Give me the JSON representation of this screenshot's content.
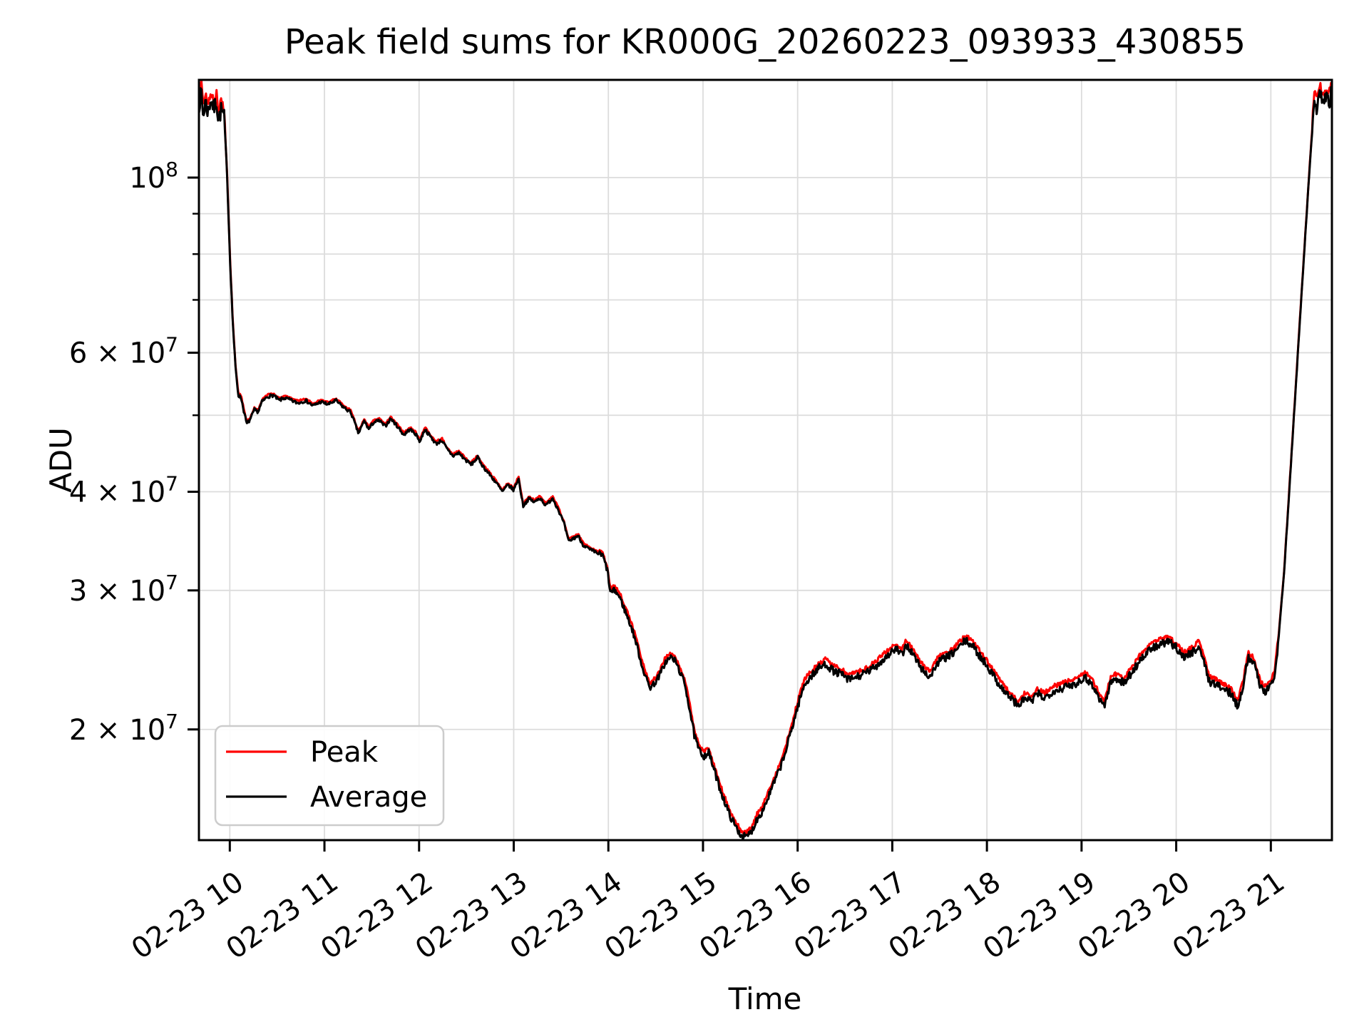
{
  "title": "Peak field sums for KR000G_20260223_093933_430855",
  "xlabel": "Time",
  "ylabel": "ADU",
  "legend": {
    "items": [
      {
        "label": "Peak",
        "color": "#ff0000"
      },
      {
        "label": "Average",
        "color": "#000000"
      }
    ]
  },
  "colors": {
    "grid": "#dcdcdc",
    "spine": "#000000",
    "background": "#ffffff"
  },
  "chart_data": {
    "type": "line",
    "title": "Peak field sums for KR000G_20260223_093933_430855",
    "xlabel": "Time",
    "ylabel": "ADU",
    "x_axis": {
      "kind": "time",
      "tick_hours": [
        10,
        11,
        12,
        13,
        14,
        15,
        16,
        17,
        18,
        19,
        20,
        21
      ],
      "ticklabels": [
        "02-23 10",
        "02-23 11",
        "02-23 12",
        "02-23 13",
        "02-23 14",
        "02-23 15",
        "02-23 16",
        "02-23 17",
        "02-23 18",
        "02-23 19",
        "02-23 20",
        "02-23 21"
      ],
      "data_start_hour": 9.676,
      "data_end_hour": 21.645
    },
    "y_axis": {
      "scale": "log",
      "unit": "ADU",
      "ylim_1e7": [
        1.448,
        13.3
      ],
      "major_ticks": [
        {
          "value_1e7": 10,
          "text": "10",
          "exp": "8"
        },
        {
          "value_1e7": 6,
          "text": "6 × 10",
          "exp": "7"
        },
        {
          "value_1e7": 4,
          "text": "4 × 10",
          "exp": "7"
        },
        {
          "value_1e7": 3,
          "text": "3 × 10",
          "exp": "7"
        },
        {
          "value_1e7": 2,
          "text": "2 × 10",
          "exp": "7"
        }
      ],
      "minor_gridline_values_1e7": [
        9,
        8,
        7,
        5
      ]
    },
    "grid": true,
    "legend_position": "lower left",
    "series": [
      {
        "name": "Average",
        "color": "#000000",
        "units": "ADU (values given in multiples of 1e7)",
        "keypoints_t_hours_v_1e7": [
          [
            9.676,
            12.4
          ],
          [
            9.7,
            12.8
          ],
          [
            9.72,
            11.9
          ],
          [
            9.74,
            12.5
          ],
          [
            9.77,
            12.1
          ],
          [
            9.8,
            12.6
          ],
          [
            9.83,
            12.2
          ],
          [
            9.86,
            12.5
          ],
          [
            9.88,
            11.8
          ],
          [
            9.91,
            12.2
          ],
          [
            9.94,
            11.9
          ],
          [
            9.97,
            10.2
          ],
          [
            10.0,
            8.0
          ],
          [
            10.03,
            6.6
          ],
          [
            10.06,
            5.75
          ],
          [
            10.09,
            5.3
          ],
          [
            10.12,
            5.26
          ],
          [
            10.15,
            5.05
          ],
          [
            10.18,
            4.87
          ],
          [
            10.22,
            4.95
          ],
          [
            10.26,
            5.08
          ],
          [
            10.3,
            5.05
          ],
          [
            10.34,
            5.2
          ],
          [
            10.4,
            5.28
          ],
          [
            10.46,
            5.3
          ],
          [
            10.52,
            5.22
          ],
          [
            10.58,
            5.26
          ],
          [
            10.65,
            5.22
          ],
          [
            10.72,
            5.18
          ],
          [
            10.8,
            5.22
          ],
          [
            10.88,
            5.14
          ],
          [
            10.96,
            5.2
          ],
          [
            11.04,
            5.16
          ],
          [
            11.12,
            5.22
          ],
          [
            11.2,
            5.12
          ],
          [
            11.28,
            5.04
          ],
          [
            11.36,
            4.74
          ],
          [
            11.42,
            4.92
          ],
          [
            11.47,
            4.8
          ],
          [
            11.52,
            4.9
          ],
          [
            11.58,
            4.92
          ],
          [
            11.64,
            4.84
          ],
          [
            11.7,
            4.95
          ],
          [
            11.76,
            4.86
          ],
          [
            11.84,
            4.72
          ],
          [
            11.9,
            4.8
          ],
          [
            11.96,
            4.74
          ],
          [
            12.01,
            4.63
          ],
          [
            12.06,
            4.8
          ],
          [
            12.12,
            4.7
          ],
          [
            12.18,
            4.6
          ],
          [
            12.24,
            4.65
          ],
          [
            12.3,
            4.52
          ],
          [
            12.36,
            4.44
          ],
          [
            12.42,
            4.48
          ],
          [
            12.48,
            4.4
          ],
          [
            12.55,
            4.33
          ],
          [
            12.62,
            4.42
          ],
          [
            12.68,
            4.3
          ],
          [
            12.75,
            4.2
          ],
          [
            12.82,
            4.1
          ],
          [
            12.88,
            4.0
          ],
          [
            12.94,
            4.08
          ],
          [
            13.0,
            4.02
          ],
          [
            13.05,
            4.16
          ],
          [
            13.1,
            3.84
          ],
          [
            13.16,
            3.92
          ],
          [
            13.22,
            3.88
          ],
          [
            13.28,
            3.93
          ],
          [
            13.34,
            3.84
          ],
          [
            13.41,
            3.93
          ],
          [
            13.47,
            3.8
          ],
          [
            13.53,
            3.65
          ],
          [
            13.58,
            3.46
          ],
          [
            13.63,
            3.49
          ],
          [
            13.68,
            3.52
          ],
          [
            13.73,
            3.43
          ],
          [
            13.8,
            3.38
          ],
          [
            13.87,
            3.35
          ],
          [
            13.94,
            3.32
          ],
          [
            13.99,
            3.18
          ],
          [
            14.02,
            2.98
          ],
          [
            14.07,
            3.0
          ],
          [
            14.12,
            2.94
          ],
          [
            14.16,
            2.86
          ],
          [
            14.2,
            2.78
          ],
          [
            14.25,
            2.68
          ],
          [
            14.3,
            2.56
          ],
          [
            14.35,
            2.42
          ],
          [
            14.4,
            2.32
          ],
          [
            14.44,
            2.26
          ],
          [
            14.49,
            2.29
          ],
          [
            14.54,
            2.34
          ],
          [
            14.6,
            2.43
          ],
          [
            14.66,
            2.47
          ],
          [
            14.71,
            2.44
          ],
          [
            14.76,
            2.36
          ],
          [
            14.81,
            2.28
          ],
          [
            14.86,
            2.12
          ],
          [
            14.91,
            1.96
          ],
          [
            14.96,
            1.88
          ],
          [
            15.01,
            1.85
          ],
          [
            15.06,
            1.87
          ],
          [
            15.11,
            1.79
          ],
          [
            15.16,
            1.71
          ],
          [
            15.22,
            1.63
          ],
          [
            15.28,
            1.56
          ],
          [
            15.34,
            1.51
          ],
          [
            15.4,
            1.47
          ],
          [
            15.46,
            1.46
          ],
          [
            15.52,
            1.49
          ],
          [
            15.57,
            1.54
          ],
          [
            15.62,
            1.57
          ],
          [
            15.68,
            1.63
          ],
          [
            15.74,
            1.7
          ],
          [
            15.8,
            1.77
          ],
          [
            15.86,
            1.85
          ],
          [
            15.92,
            1.97
          ],
          [
            15.97,
            2.07
          ],
          [
            16.02,
            2.18
          ],
          [
            16.08,
            2.29
          ],
          [
            16.15,
            2.34
          ],
          [
            16.22,
            2.39
          ],
          [
            16.3,
            2.42
          ],
          [
            16.38,
            2.37
          ],
          [
            16.46,
            2.35
          ],
          [
            16.54,
            2.31
          ],
          [
            16.62,
            2.33
          ],
          [
            16.7,
            2.35
          ],
          [
            16.8,
            2.39
          ],
          [
            16.9,
            2.45
          ],
          [
            16.98,
            2.5
          ],
          [
            17.04,
            2.53
          ],
          [
            17.1,
            2.48
          ],
          [
            17.15,
            2.56
          ],
          [
            17.21,
            2.5
          ],
          [
            17.27,
            2.43
          ],
          [
            17.33,
            2.37
          ],
          [
            17.4,
            2.33
          ],
          [
            17.47,
            2.42
          ],
          [
            17.54,
            2.46
          ],
          [
            17.61,
            2.48
          ],
          [
            17.69,
            2.53
          ],
          [
            17.77,
            2.59
          ],
          [
            17.84,
            2.56
          ],
          [
            17.91,
            2.49
          ],
          [
            17.98,
            2.43
          ],
          [
            18.05,
            2.36
          ],
          [
            18.12,
            2.29
          ],
          [
            18.19,
            2.23
          ],
          [
            18.26,
            2.19
          ],
          [
            18.33,
            2.14
          ],
          [
            18.4,
            2.19
          ],
          [
            18.47,
            2.17
          ],
          [
            18.54,
            2.22
          ],
          [
            18.61,
            2.19
          ],
          [
            18.68,
            2.23
          ],
          [
            18.77,
            2.25
          ],
          [
            18.86,
            2.27
          ],
          [
            18.95,
            2.29
          ],
          [
            19.03,
            2.33
          ],
          [
            19.1,
            2.29
          ],
          [
            19.17,
            2.21
          ],
          [
            19.24,
            2.14
          ],
          [
            19.31,
            2.3
          ],
          [
            19.38,
            2.32
          ],
          [
            19.45,
            2.29
          ],
          [
            19.53,
            2.36
          ],
          [
            19.62,
            2.45
          ],
          [
            19.72,
            2.52
          ],
          [
            19.82,
            2.56
          ],
          [
            19.92,
            2.58
          ],
          [
            20.0,
            2.54
          ],
          [
            20.08,
            2.47
          ],
          [
            20.16,
            2.5
          ],
          [
            20.24,
            2.55
          ],
          [
            20.3,
            2.42
          ],
          [
            20.35,
            2.3
          ],
          [
            20.42,
            2.28
          ],
          [
            20.5,
            2.25
          ],
          [
            20.58,
            2.22
          ],
          [
            20.65,
            2.14
          ],
          [
            20.71,
            2.28
          ],
          [
            20.76,
            2.47
          ],
          [
            20.82,
            2.43
          ],
          [
            20.89,
            2.27
          ],
          [
            20.95,
            2.23
          ],
          [
            21.0,
            2.28
          ],
          [
            21.04,
            2.33
          ],
          [
            21.08,
            2.6
          ],
          [
            21.14,
            3.16
          ],
          [
            21.23,
            4.68
          ],
          [
            21.32,
            6.97
          ],
          [
            21.41,
            10.3
          ],
          [
            21.46,
            12.5
          ],
          [
            21.49,
            12.2
          ],
          [
            21.52,
            12.9
          ],
          [
            21.55,
            12.3
          ],
          [
            21.58,
            12.7
          ],
          [
            21.61,
            12.4
          ],
          [
            21.645,
            12.8
          ]
        ]
      },
      {
        "name": "Peak",
        "color": "#ff0000",
        "relation_to_average": "red Peak trace runs ~2% above the black Average trace (visible as a thin red fringe on top of the black line, largest after 14:00)"
      }
    ]
  }
}
